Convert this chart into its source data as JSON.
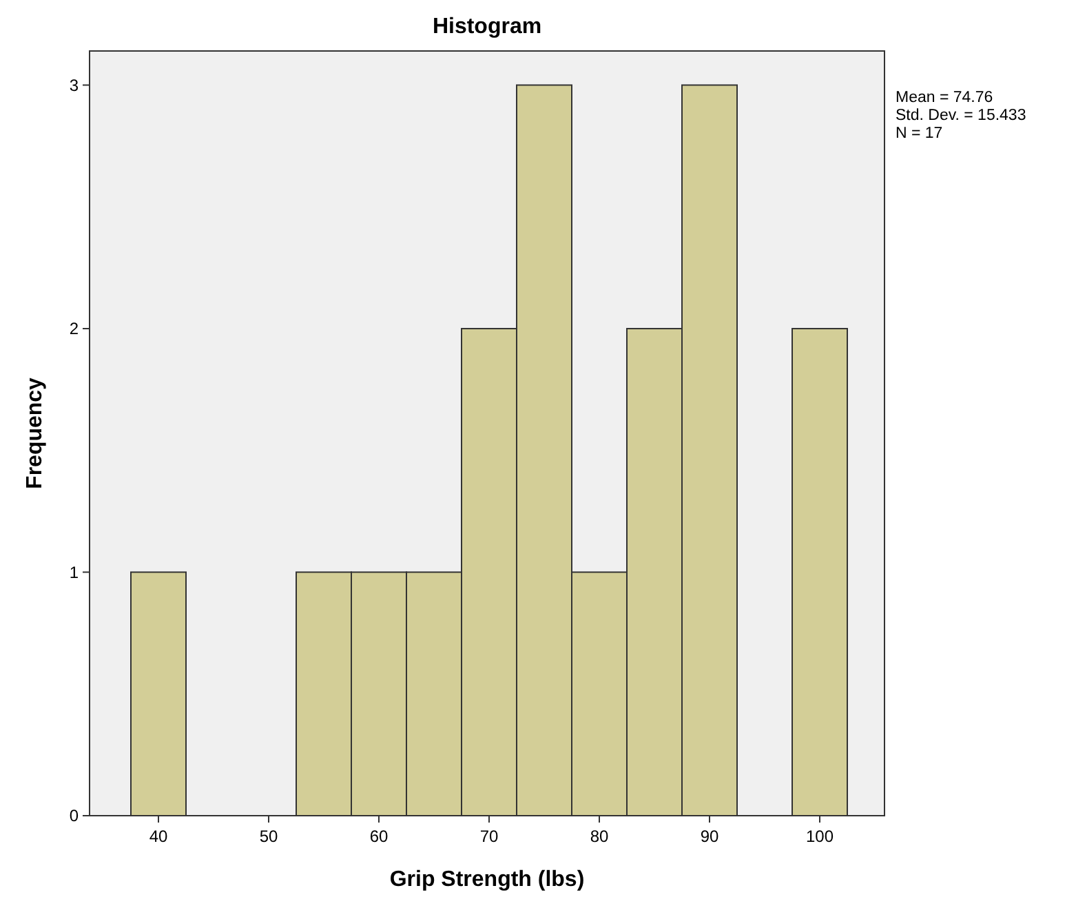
{
  "chart_data": {
    "type": "histogram",
    "title": "Histogram",
    "xlabel": "Grip Strength (lbs)",
    "ylabel": "Frequency",
    "bins": [
      37.5,
      42.5,
      47.5,
      52.5,
      57.5,
      62.5,
      67.5,
      72.5,
      77.5,
      82.5,
      87.5,
      92.5,
      97.5,
      102.5
    ],
    "values": [
      1,
      0,
      0,
      1,
      1,
      1,
      2,
      3,
      1,
      2,
      3,
      0,
      2
    ],
    "color": "#d3ce97",
    "xlim": [
      33.75,
      105.875
    ],
    "xticks": [
      40,
      50,
      60,
      70,
      80,
      90,
      100
    ],
    "ylim": [
      0,
      3.14
    ],
    "yticks": [
      0,
      1,
      2,
      3
    ],
    "grid": false,
    "annotations": [
      "Mean = 74.76",
      "Std. Dev. = 15.433",
      "N = 17"
    ]
  }
}
